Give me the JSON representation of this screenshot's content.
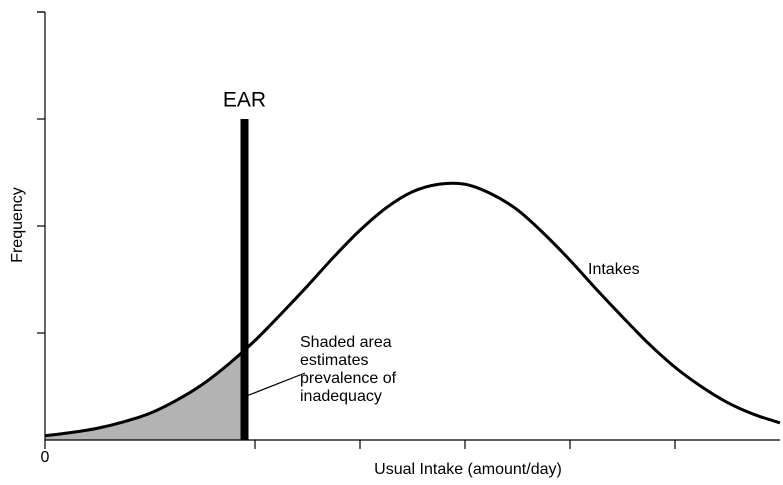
{
  "chart_data": {
    "type": "line",
    "x_label": "Usual Intake (amount/day)",
    "y_label": "Frequency",
    "x_origin_label": "0",
    "x": [
      0,
      0.25,
      0.5,
      0.75,
      1,
      1.25,
      1.5,
      1.75,
      2,
      2.25,
      2.5,
      2.75,
      3,
      3.25,
      3.5,
      3.75,
      4,
      4.25,
      4.5,
      4.75,
      5,
      5.25,
      5.5,
      5.75,
      6,
      6.25,
      6.5,
      6.75,
      7
    ],
    "series": [
      {
        "name": "Intakes",
        "color": "#000000",
        "values": [
          0.04,
          0.07,
          0.11,
          0.17,
          0.25,
          0.37,
          0.52,
          0.71,
          0.93,
          1.18,
          1.44,
          1.71,
          1.96,
          2.17,
          2.32,
          2.39,
          2.39,
          2.3,
          2.15,
          1.93,
          1.68,
          1.41,
          1.15,
          0.9,
          0.68,
          0.5,
          0.35,
          0.24,
          0.16
        ]
      }
    ],
    "ear": {
      "label": "EAR",
      "x": 1.9,
      "height": 3
    },
    "shade_color": "#b3b3b3",
    "annotation": [
      "Shaded area",
      "estimates",
      "prevalence of",
      "inadequacy"
    ],
    "xlim": [
      0,
      7
    ],
    "ylim": [
      0,
      4
    ],
    "xticks": [
      0,
      2,
      3,
      4,
      5,
      6
    ],
    "yticks": [
      1,
      2,
      3,
      4
    ]
  }
}
